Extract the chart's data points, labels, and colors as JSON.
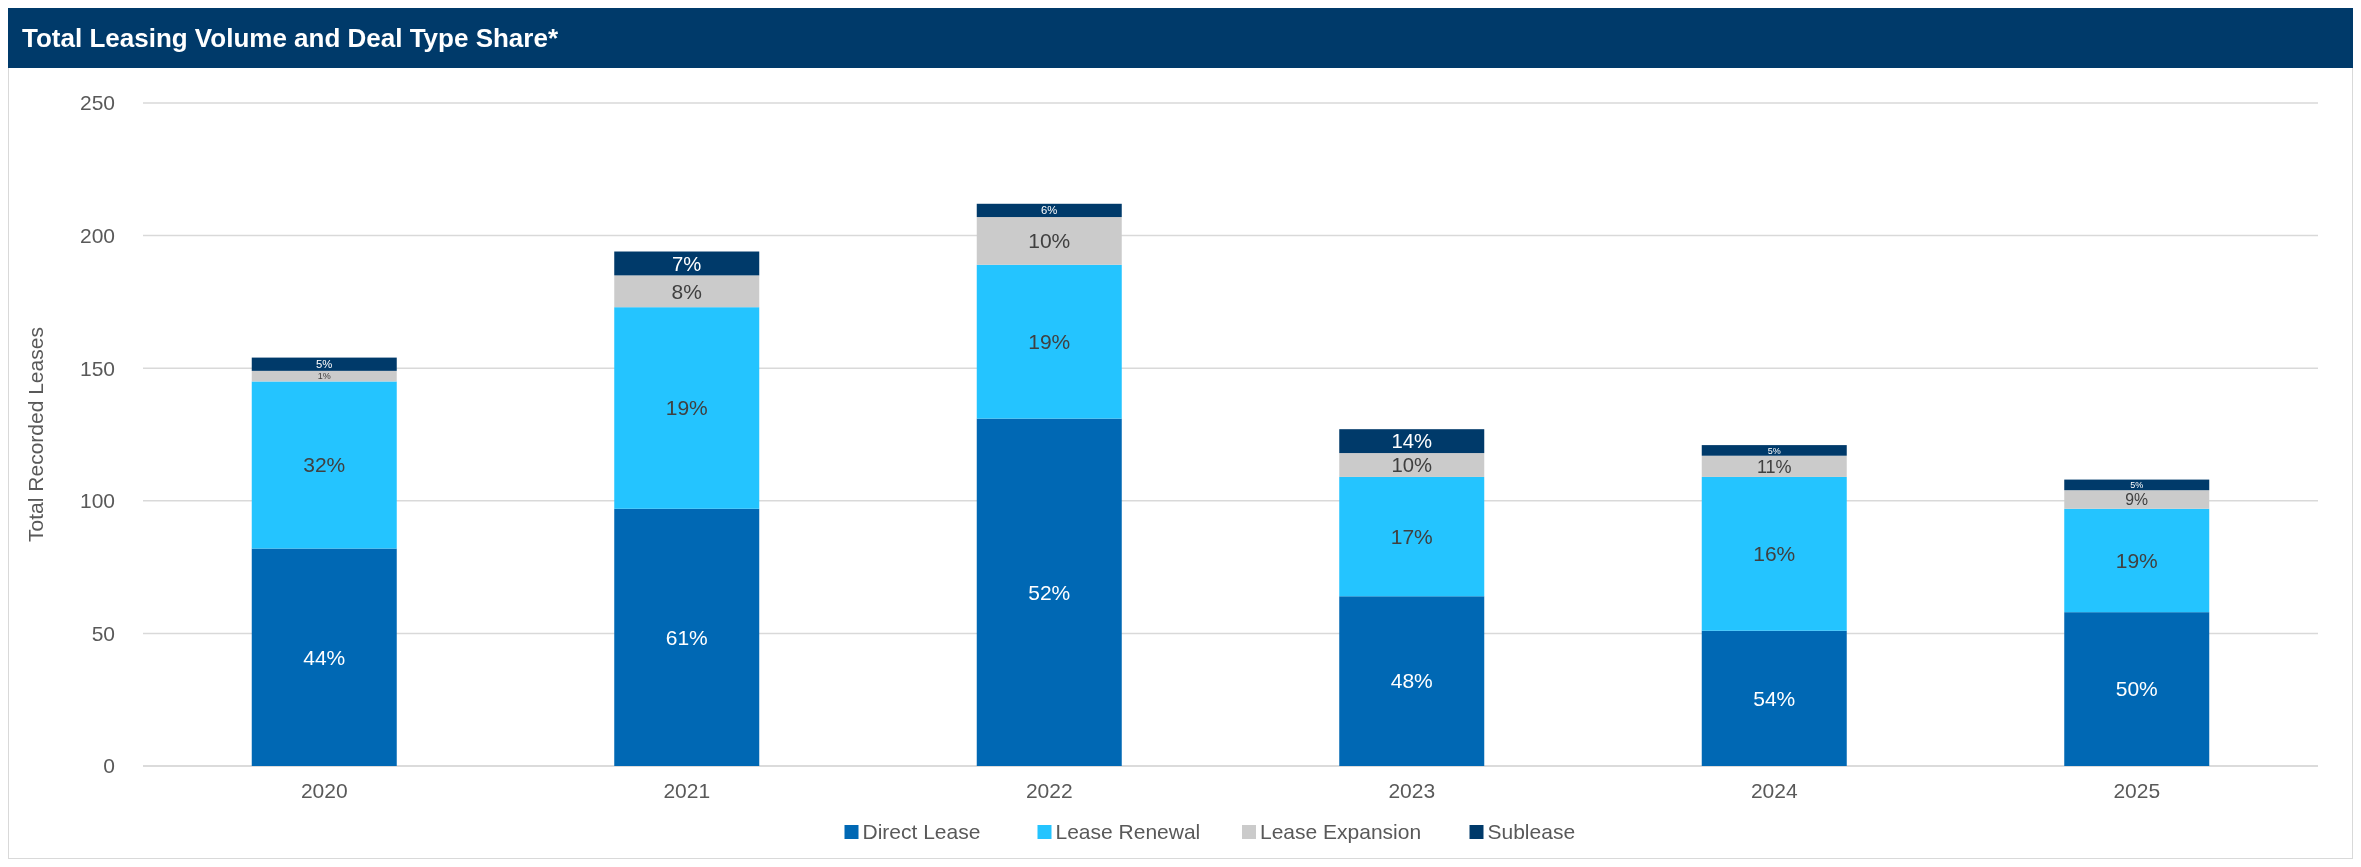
{
  "chart_data": {
    "type": "bar",
    "title": "Total Leasing Volume and Deal Type Share*",
    "ylabel": "Total Recorded Leases",
    "categories": [
      "2020",
      "2021",
      "2022",
      "2023",
      "2024",
      "2025"
    ],
    "stacked": true,
    "series": [
      {
        "name": "Direct Lease",
        "color": "#0068b4",
        "values": [
          82,
          97,
          131,
          64,
          51,
          58
        ]
      },
      {
        "name": "Lease Renewal",
        "color": "#24c4ff",
        "values": [
          63,
          76,
          58,
          45,
          58,
          39
        ]
      },
      {
        "name": "Lease Expansion",
        "color": "#cbcbcb",
        "values": [
          4,
          12,
          18,
          9,
          8,
          7
        ]
      },
      {
        "name": "Sublease",
        "color": "#003a6a",
        "values": [
          5,
          9,
          5,
          9,
          4,
          4
        ]
      }
    ],
    "annotations": [
      "44%",
      "32%",
      "1%",
      "5%",
      "61%",
      "19%",
      "8%",
      "7%",
      "52%",
      "19%",
      "10%",
      "6%",
      "48%",
      "17%",
      "10%",
      "14%",
      "54%",
      "16%",
      "11%",
      "5%",
      "50%",
      "19%",
      "9%",
      "5%"
    ],
    "ylim": [
      0,
      250
    ],
    "yticks": [
      0,
      50,
      100,
      150,
      200,
      250
    ],
    "grid": "y",
    "legend": "bottom"
  }
}
